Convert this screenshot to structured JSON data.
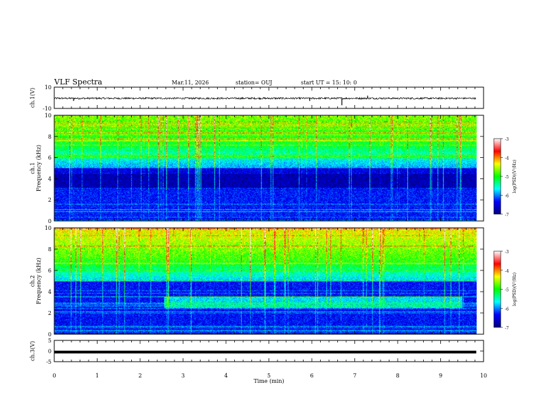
{
  "header": {
    "title": "VLF Spectra",
    "date": "Mar.11, 2026",
    "station": "station= OUJ",
    "start": "start  UT =   15: 10: 0"
  },
  "chart_data": [
    {
      "type": "line",
      "ylabel": "ch.1(V)",
      "xlim": [
        0,
        10
      ],
      "ylim": [
        -10,
        10
      ],
      "yticks": [
        "10",
        "-10"
      ],
      "trace_extent_x": [
        0,
        9.83
      ],
      "baseline": -0.5,
      "spikes": [
        {
          "x": 6.7,
          "y": -7
        },
        {
          "x": 5.95,
          "y": -3
        },
        {
          "x": 0.45,
          "y": -3
        },
        {
          "x": 7.3,
          "y": 2
        }
      ]
    },
    {
      "type": "heatmap",
      "ylabel": "ch.1\nFrequency (kHz)",
      "xlim": [
        0,
        10
      ],
      "ylim": [
        0,
        10
      ],
      "yticks": [
        "0",
        "2",
        "4",
        "6",
        "8",
        "10"
      ],
      "colorbar": {
        "label": "log(PSD)(V²/Hz)",
        "range": [
          -7,
          -3
        ],
        "ticks": [
          "-3",
          "-4",
          "-5",
          "-6",
          "-7"
        ],
        "colormap": [
          "#000080",
          "#0000ff",
          "#00ffff",
          "#00ff00",
          "#ffff00",
          "#ff0000",
          "#ffffff"
        ]
      }
    },
    {
      "type": "heatmap",
      "ylabel": "ch.2\nFrequency (kHz)",
      "xlim": [
        0,
        10
      ],
      "ylim": [
        0,
        10
      ],
      "yticks": [
        "0",
        "2",
        "4",
        "6",
        "8",
        "10"
      ],
      "colorbar": {
        "label": "log(PSD)(V²/Hz)",
        "range": [
          -7,
          -3
        ],
        "ticks": [
          "-3",
          "-4",
          "-5",
          "-6",
          "-7"
        ],
        "colormap": [
          "#000080",
          "#0000ff",
          "#00ffff",
          "#00ff00",
          "#ffff00",
          "#ff0000",
          "#ffffff"
        ]
      }
    },
    {
      "type": "line",
      "ylabel": "ch.3(V)",
      "xlim": [
        0,
        10
      ],
      "ylim": [
        -5,
        5
      ],
      "yticks": [
        "5",
        "0",
        "-5"
      ],
      "trace_extent_x": [
        0,
        9.83
      ],
      "baseline": -0.5,
      "xlabel": "Time (min)",
      "xticks": [
        "0",
        "1",
        "2",
        "3",
        "4",
        "5",
        "6",
        "7",
        "8",
        "9",
        "10"
      ]
    }
  ]
}
